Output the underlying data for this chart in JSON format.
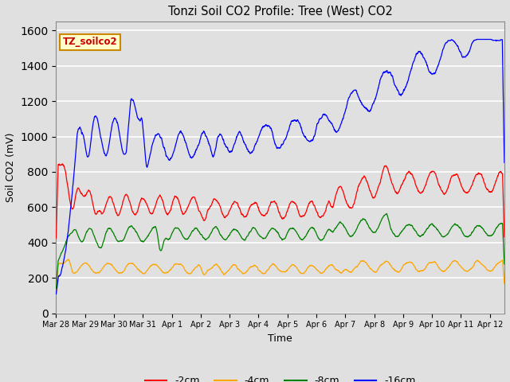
{
  "title": "Tonzi Soil CO2 Profile: Tree (West) CO2",
  "xlabel": "Time",
  "ylabel": "Soil CO2 (mV)",
  "ylim": [
    0,
    1650
  ],
  "yticks": [
    0,
    200,
    400,
    600,
    800,
    1000,
    1200,
    1400,
    1600
  ],
  "background_color": "#e0e0e0",
  "plot_bg_color": "#e0e0e0",
  "grid_color": "white",
  "watermark_text": "TZ_soilco2",
  "watermark_bg": "#ffffcc",
  "watermark_border": "#cc8800",
  "watermark_text_color": "#cc0000",
  "tick_labels": [
    "Mar 28",
    "Mar 29",
    "Mar 30",
    "Mar 31",
    "Apr 1",
    "Apr 2",
    "Apr 3",
    "Apr 4",
    "Apr 5",
    "Apr 6",
    "Apr 7",
    "Apr 8",
    "Apr 9",
    "Apr 10",
    "Apr 11",
    "Apr 12"
  ],
  "tick_positions": [
    0,
    1,
    2,
    3,
    4,
    5,
    6,
    7,
    8,
    9,
    10,
    11,
    12,
    13,
    14,
    15
  ]
}
